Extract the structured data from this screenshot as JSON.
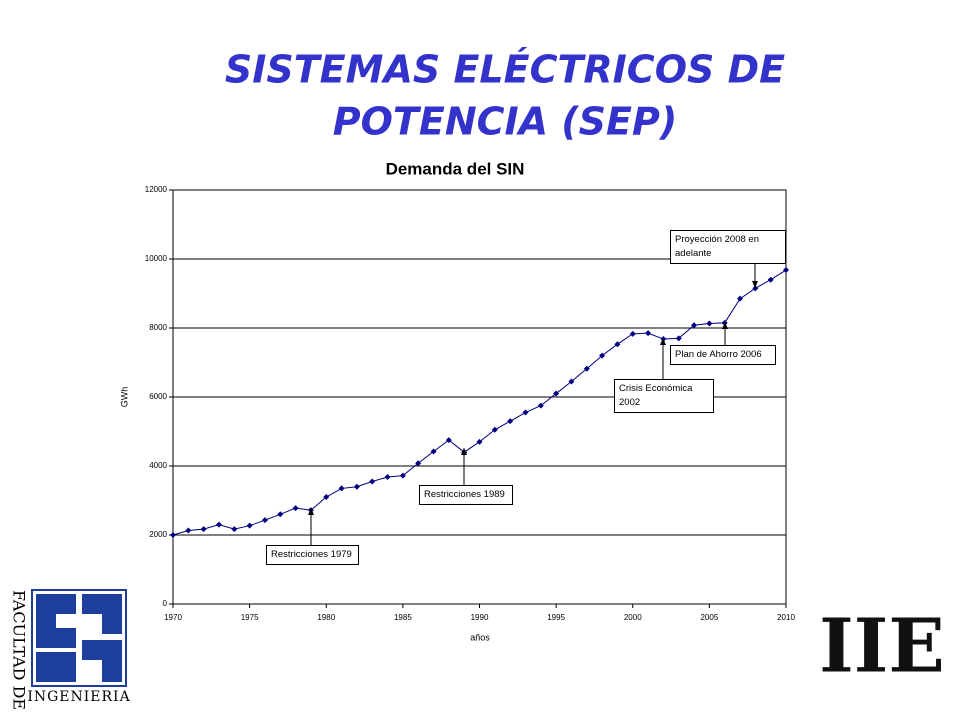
{
  "slide_title": [
    "SISTEMAS ELÉCTRICOS DE",
    "POTENCIA (SEP)"
  ],
  "logos": {
    "faculty_vertical": "FACULTAD DE",
    "faculty_bottom": "INGENIERIA",
    "institute": "IIE"
  },
  "chart_data": {
    "type": "line",
    "title": "Demanda del SIN",
    "x_label": "años",
    "y_label": "GWh",
    "x": [
      1970,
      1971,
      1972,
      1973,
      1974,
      1975,
      1976,
      1977,
      1978,
      1979,
      1980,
      1981,
      1982,
      1983,
      1984,
      1985,
      1986,
      1987,
      1988,
      1989,
      1990,
      1991,
      1992,
      1993,
      1994,
      1995,
      1996,
      1997,
      1998,
      1999,
      2000,
      2001,
      2002,
      2003,
      2004,
      2005,
      2006,
      2007,
      2008,
      2009,
      2010
    ],
    "series": [
      {
        "name": "Demanda",
        "color": "#000080",
        "values": [
          2000,
          2130,
          2170,
          2300,
          2170,
          2270,
          2430,
          2600,
          2780,
          2720,
          3100,
          3350,
          3400,
          3550,
          3680,
          3720,
          4080,
          4420,
          4750,
          4400,
          4700,
          5050,
          5300,
          5550,
          5750,
          6100,
          6450,
          6820,
          7200,
          7530,
          7830,
          7850,
          7680,
          7700,
          8080,
          8130,
          8150,
          8850,
          9150,
          9400,
          9680
        ]
      }
    ],
    "xlim": [
      1970,
      2010
    ],
    "xticks": [
      1970,
      1975,
      1980,
      1985,
      1990,
      1995,
      2000,
      2005,
      2010
    ],
    "ylim": [
      0,
      12000
    ],
    "yticks": [
      0,
      2000,
      4000,
      6000,
      8000,
      10000,
      12000
    ],
    "grid": true,
    "annotations": [
      "Restricciones 1979",
      "Restricciones 1989",
      "Crisis Económica 2002",
      "Plan de Ahorro 2006",
      "Proyección 2008 en adelante"
    ]
  }
}
